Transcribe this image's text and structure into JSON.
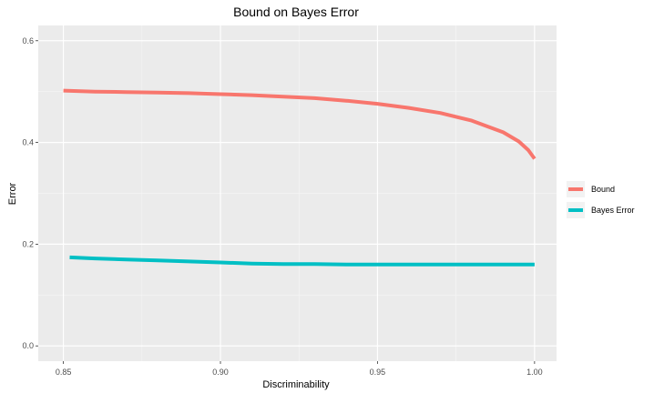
{
  "chart_data": {
    "type": "line",
    "title": "Bound on Bayes Error",
    "xlabel": "Discriminability",
    "ylabel": "Error",
    "xlim": [
      0.842,
      1.007
    ],
    "ylim": [
      -0.03,
      0.63
    ],
    "x_ticks": [
      0.85,
      0.9,
      0.95,
      1.0
    ],
    "x_tick_labels": [
      "0.85",
      "0.90",
      "0.95",
      "1.00"
    ],
    "y_ticks": [
      0.0,
      0.2,
      0.4,
      0.6
    ],
    "y_tick_labels": [
      "0.0",
      "0.2",
      "0.4",
      "0.6"
    ],
    "grid": true,
    "legend_position": "right",
    "series": [
      {
        "name": "Bound",
        "color": "#F8766D",
        "x": [
          0.85,
          0.86,
          0.87,
          0.88,
          0.89,
          0.9,
          0.91,
          0.92,
          0.93,
          0.94,
          0.95,
          0.96,
          0.97,
          0.98,
          0.99,
          0.995,
          0.998,
          1.0
        ],
        "y": [
          0.502,
          0.5,
          0.499,
          0.498,
          0.497,
          0.495,
          0.493,
          0.49,
          0.487,
          0.482,
          0.476,
          0.468,
          0.458,
          0.443,
          0.42,
          0.402,
          0.385,
          0.368
        ]
      },
      {
        "name": "Bayes Error",
        "color": "#00BFC4",
        "x": [
          0.852,
          0.86,
          0.87,
          0.88,
          0.89,
          0.9,
          0.91,
          0.92,
          0.93,
          0.94,
          0.95,
          0.96,
          0.97,
          0.98,
          0.99,
          1.0
        ],
        "y": [
          0.174,
          0.172,
          0.17,
          0.168,
          0.166,
          0.164,
          0.162,
          0.161,
          0.161,
          0.16,
          0.16,
          0.16,
          0.16,
          0.16,
          0.16,
          0.16
        ]
      }
    ]
  }
}
